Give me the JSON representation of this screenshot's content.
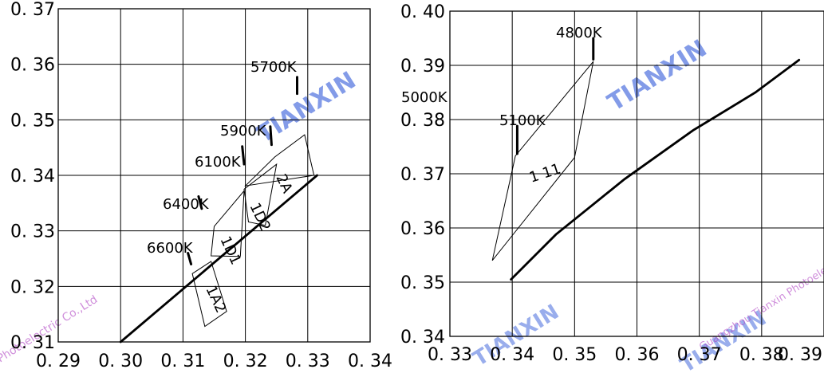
{
  "chart_data": [
    {
      "type": "line",
      "title": "",
      "xlabel": "",
      "ylabel": "",
      "x_ticks": [
        "0. 29",
        "0. 30",
        "0. 31",
        "0. 32",
        "0. 33",
        "0. 34"
      ],
      "y_ticks": [
        "0. 37",
        "0. 36",
        "0. 35",
        "0. 34",
        "0. 33",
        "0. 32",
        "0. 31"
      ],
      "xlim": [
        0.29,
        0.34
      ],
      "ylim": [
        0.31,
        0.37
      ],
      "grid": true,
      "curve": [
        [
          0.3,
          0.31
        ],
        [
          0.3315,
          0.34
        ]
      ],
      "bins": [
        {
          "label": "1A2",
          "points": [
            [
              0.3115,
              0.3223
            ],
            [
              0.3145,
              0.3245
            ],
            [
              0.317,
              0.3155
            ],
            [
              0.3135,
              0.3128
            ]
          ]
        },
        {
          "label": "1D1",
          "points": [
            [
              0.3145,
              0.3255
            ],
            [
              0.315,
              0.3308
            ],
            [
              0.3198,
              0.3372
            ],
            [
              0.3192,
              0.3254
            ]
          ]
        },
        {
          "label": "1D2",
          "points": [
            [
              0.3205,
              0.3316
            ],
            [
              0.3198,
              0.3375
            ],
            [
              0.325,
              0.342
            ],
            [
              0.3232,
              0.331
            ]
          ]
        },
        {
          "label": "2A",
          "points": [
            [
              0.32,
              0.3381
            ],
            [
              0.3247,
              0.3433
            ],
            [
              0.3295,
              0.3473
            ],
            [
              0.331,
              0.34
            ]
          ]
        }
      ],
      "annotations": [
        {
          "text": "5700K",
          "line": [
            [
              0.3283,
              0.3577
            ],
            [
              0.3283,
              0.3547
            ]
          ]
        },
        {
          "text": "5900K",
          "line": [
            [
              0.324,
              0.3488
            ],
            [
              0.3242,
              0.3455
            ]
          ]
        },
        {
          "text": "6100K",
          "line": [
            [
              0.3195,
              0.3452
            ],
            [
              0.3198,
              0.342
            ]
          ]
        },
        {
          "text": "6400K",
          "line": [
            [
              0.3125,
              0.3362
            ],
            [
              0.313,
              0.334
            ]
          ]
        },
        {
          "text": "6600K",
          "line": [
            [
              0.3108,
              0.326
            ],
            [
              0.3113,
              0.324
            ]
          ]
        }
      ]
    },
    {
      "type": "line",
      "title": "",
      "xlabel": "",
      "ylabel": "",
      "x_ticks": [
        "0. 33",
        "0. 34",
        "0. 35",
        "0. 36",
        "0. 37",
        "0. 38",
        "0. 39"
      ],
      "y_ticks": [
        "0. 40",
        "0. 39",
        "0. 38",
        "0. 37",
        "0. 36",
        "0. 35",
        "0. 34"
      ],
      "xlim": [
        0.33,
        0.39
      ],
      "ylim": [
        0.34,
        0.4
      ],
      "grid": true,
      "curve": [
        [
          0.3398,
          0.3505
        ],
        [
          0.347,
          0.3588
        ],
        [
          0.358,
          0.369
        ],
        [
          0.369,
          0.378
        ],
        [
          0.379,
          0.385
        ],
        [
          0.386,
          0.391
        ]
      ],
      "bins": [
        {
          "label": "1 11",
          "points": [
            [
              0.3368,
              0.354
            ],
            [
              0.3405,
              0.3733
            ],
            [
              0.353,
              0.3907
            ],
            [
              0.35,
              0.373
            ]
          ]
        }
      ],
      "annotations": [
        {
          "text": "4800K",
          "line": [
            [
              0.353,
              0.395
            ],
            [
              0.353,
              0.3911
            ]
          ]
        },
        {
          "text": "5100K",
          "line": [
            [
              0.3408,
              0.3788
            ],
            [
              0.3408,
              0.3737
            ]
          ]
        },
        {
          "text": "5000K",
          "line": []
        }
      ]
    }
  ]
}
